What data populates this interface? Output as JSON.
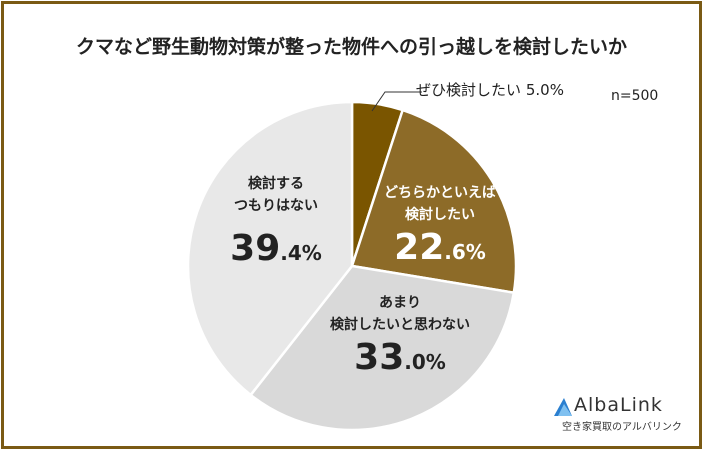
{
  "chart_data": {
    "type": "pie",
    "title": "クマなど野生動物対策が整った物件への引っ越しを検討したいか",
    "note": "n=500",
    "slices": [
      {
        "label": "ぜひ検討したい",
        "value": 5.0,
        "color": "#7a5500",
        "display": "5.0%"
      },
      {
        "label": "どちらかといえば検討したい",
        "line1": "どちらかといえば",
        "line2": "検討したい",
        "value": 22.6,
        "color": "#8d6b28",
        "big": "22",
        "small": ".6%"
      },
      {
        "label": "あまり検討したいと思わない",
        "line1": "あまり",
        "line2": "検討したいと思わない",
        "value": 33.0,
        "color": "#d9d9d9",
        "big": "33",
        "small": ".0%"
      },
      {
        "label": "検討するつもりはない",
        "line1": "検討する",
        "line2": "つもりはない",
        "value": 39.4,
        "color": "#e8e8e8",
        "big": "39",
        "small": ".4%"
      }
    ]
  },
  "logo": {
    "name": "AlbaLink",
    "tagline": "空き家買取のアルバリンク"
  }
}
